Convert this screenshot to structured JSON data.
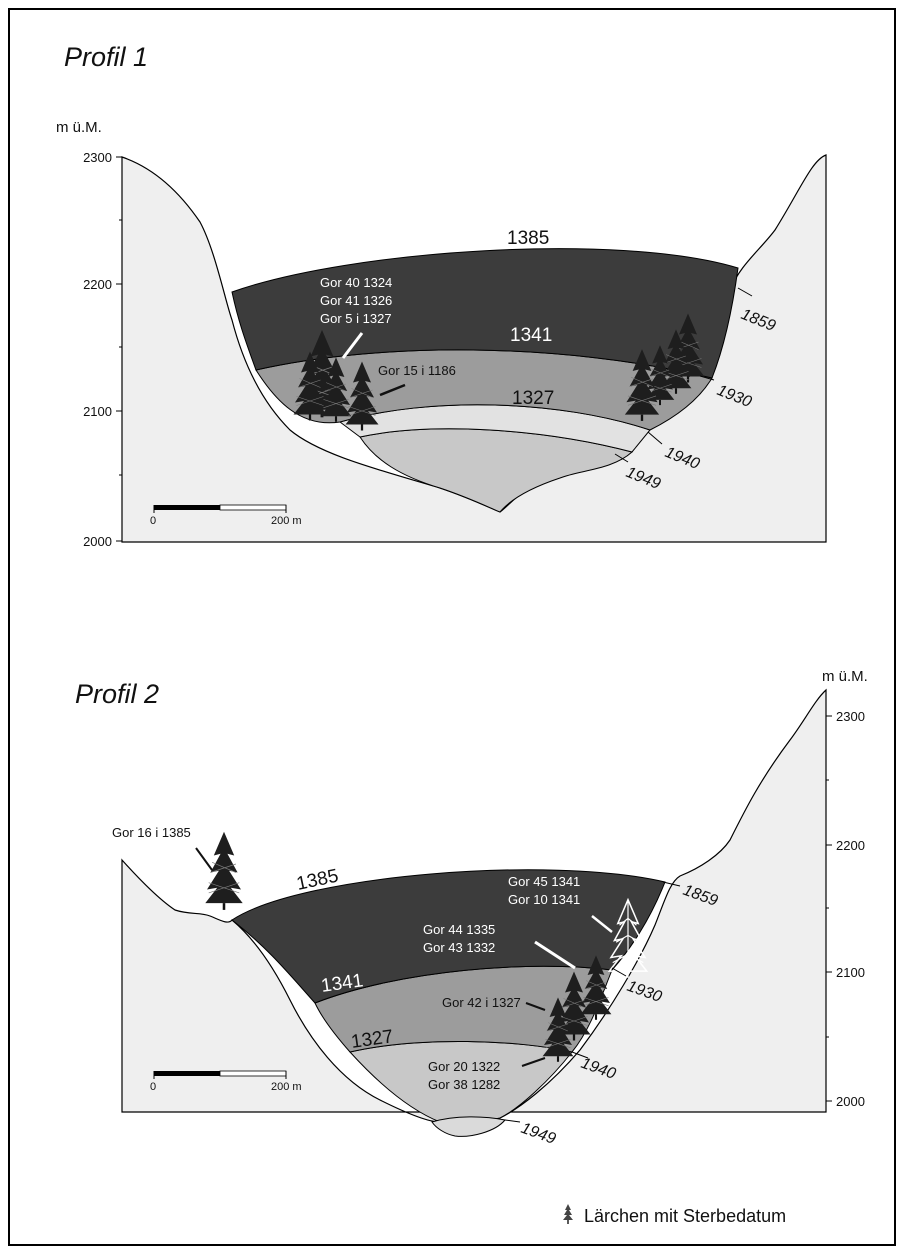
{
  "profil1": {
    "title": "Profil 1",
    "unit": "m ü.M.",
    "ticks": [
      "2300",
      "2200",
      "2100",
      "2000"
    ],
    "scale": {
      "start": "0",
      "end": "200 m"
    },
    "levels": {
      "top": "1385",
      "mid": "1341",
      "low": "1327"
    },
    "years": {
      "y1859": "1859",
      "y1930": "1930",
      "y1940": "1940",
      "y1949": "1949"
    },
    "labels": {
      "l1": "Gor 40   1324",
      "l2": "Gor 41   1326",
      "l3": "Gor 5 i   1327",
      "l4": "Gor 15 i   1186"
    }
  },
  "profil2": {
    "title": "Profil 2",
    "unit": "m ü.M.",
    "ticks": [
      "2300",
      "2200",
      "2100",
      "2000"
    ],
    "scale": {
      "start": "0",
      "end": "200 m"
    },
    "levels": {
      "top": "1385",
      "mid": "1341",
      "low": "1327"
    },
    "years": {
      "y1859": "1859",
      "y1930": "1930",
      "y1940": "1940",
      "y1949": "1949"
    },
    "labels": {
      "l16": "Gor 16 i   1385",
      "l45": "Gor 45   1341",
      "l10": "Gor 10   1341",
      "l44": "Gor 44   1335",
      "l43": "Gor 43   1332",
      "l42": "Gor 42 i   1327",
      "l20": "Gor 20     1322",
      "l38": "Gor 38     1282"
    }
  },
  "legend": {
    "label": "Lärchen mit Sterbedatum"
  }
}
